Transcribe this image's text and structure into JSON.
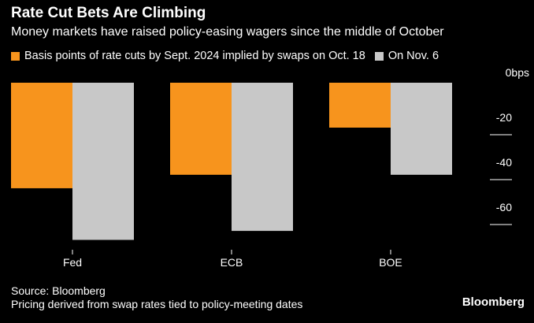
{
  "chart_data": {
    "type": "bar",
    "title": "Rate Cut Bets Are Climbing",
    "subtitle": "Money markets have raised policy-easing wagers since the middle of October",
    "categories": [
      "Fed",
      "ECB",
      "BOE"
    ],
    "series": [
      {
        "name": "Basis points of rate cuts by Sept. 2024 implied by swaps on Oct. 18",
        "color": "#f7941d",
        "values": [
          -47,
          -41,
          -20
        ]
      },
      {
        "name": "On Nov. 6",
        "color": "#c8c8c8",
        "values": [
          -70,
          -66,
          -41
        ]
      }
    ],
    "ylim": [
      -75,
      0
    ],
    "yticks": [
      0,
      -20,
      -40,
      -60
    ],
    "ytick_labels": [
      "0bps",
      "-20",
      "-40",
      "-60"
    ],
    "grid": false,
    "legend_position": "top-left"
  },
  "footer": {
    "source": "Source: Bloomberg",
    "note": "Pricing derived from swap rates tied to policy-meeting dates",
    "brand": "Bloomberg"
  }
}
